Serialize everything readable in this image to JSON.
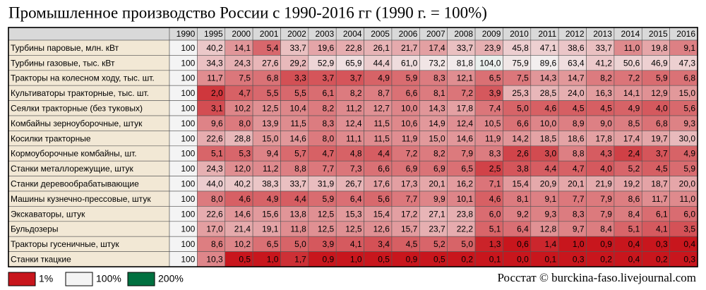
{
  "chart_data": {
    "type": "heatmap",
    "title": "Промышленное производство России с 1990-2016 гг (1990 г. = 100%)",
    "source": "Росстат © burckina-faso.livejournal.com",
    "columns": [
      "1990",
      "1995",
      "2000",
      "2001",
      "2002",
      "2003",
      "2004",
      "2005",
      "2006",
      "2007",
      "2008",
      "2009",
      "2010",
      "2011",
      "2012",
      "2013",
      "2014",
      "2015",
      "2016"
    ],
    "color_scale": [
      {
        "value": 1,
        "label": "1%",
        "color": "#c8161d"
      },
      {
        "value": 100,
        "label": "100%",
        "color": "#f4f4f4"
      },
      {
        "value": 200,
        "label": "200%",
        "color": "#007040"
      }
    ],
    "rows": [
      {
        "label": "Турбины паровые, млн. кВт",
        "values": [
          100,
          40.2,
          14.1,
          5.4,
          33.7,
          19.6,
          22.8,
          26.1,
          21.7,
          17.4,
          33.7,
          23.9,
          45.8,
          47.1,
          38.6,
          33.7,
          11.0,
          19.8,
          9.1
        ],
        "value_labels": [
          "100",
          "40,2",
          "14,1",
          "5,4",
          "33,7",
          "19,6",
          "22,8",
          "26,1",
          "21,7",
          "17,4",
          "33,7",
          "23,9",
          "45,8",
          "47,1",
          "38,6",
          "33,7",
          "11,0",
          "19,8",
          "9,1"
        ]
      },
      {
        "label": "Турбины газовые, тыс. кВт",
        "values": [
          100,
          34.3,
          24.3,
          27.6,
          29.2,
          52.9,
          65.9,
          44.4,
          61.0,
          73.2,
          81.8,
          104.0,
          75.9,
          89.6,
          63.4,
          41.2,
          50.6,
          46.9,
          47.3
        ],
        "value_labels": [
          "100",
          "34,3",
          "24,3",
          "27,6",
          "29,2",
          "52,9",
          "65,9",
          "44,4",
          "61,0",
          "73,2",
          "81,8",
          "104,0",
          "75,9",
          "89,6",
          "63,4",
          "41,2",
          "50,6",
          "46,9",
          "47,3"
        ]
      },
      {
        "label": "Тракторы на колесном ходу, тыс. шт.",
        "values": [
          100,
          11.7,
          7.5,
          6.8,
          3.3,
          3.7,
          3.7,
          4.9,
          5.9,
          8.3,
          12.1,
          6.5,
          7.5,
          14.3,
          14.7,
          8.2,
          7.2,
          5.9,
          6.8
        ],
        "value_labels": [
          "100",
          "11,7",
          "7,5",
          "6,8",
          "3,3",
          "3,7",
          "3,7",
          "4,9",
          "5,9",
          "8,3",
          "12,1",
          "6,5",
          "7,5",
          "14,3",
          "14,7",
          "8,2",
          "7,2",
          "5,9",
          "6,8"
        ]
      },
      {
        "label": "Культиваторы тракторные, тыс. шт.",
        "values": [
          100,
          2.0,
          4.7,
          5.5,
          5.5,
          6.1,
          8.2,
          8.7,
          6.6,
          8.1,
          7.2,
          3.9,
          25.3,
          28.5,
          24.0,
          16.3,
          14.1,
          12.9,
          15.0
        ],
        "value_labels": [
          "100",
          "2,0",
          "4,7",
          "5,5",
          "5,5",
          "6,1",
          "8,2",
          "8,7",
          "6,6",
          "8,1",
          "7,2",
          "3,9",
          "25,3",
          "28,5",
          "24,0",
          "16,3",
          "14,1",
          "12,9",
          "15,0"
        ]
      },
      {
        "label": "Сеялки тракторные (без туковых)",
        "values": [
          100,
          3.1,
          10.2,
          12.5,
          10.4,
          8.2,
          11.2,
          12.7,
          10.0,
          14.3,
          17.8,
          7.4,
          5.0,
          4.6,
          4.5,
          4.5,
          4.9,
          4.0,
          5.6
        ],
        "value_labels": [
          "100",
          "3,1",
          "10,2",
          "12,5",
          "10,4",
          "8,2",
          "11,2",
          "12,7",
          "10,0",
          "14,3",
          "17,8",
          "7,4",
          "5,0",
          "4,6",
          "4,5",
          "4,5",
          "4,9",
          "4,0",
          "5,6"
        ]
      },
      {
        "label": "Комбайны зерноуборочные, штук",
        "values": [
          100,
          9.6,
          8.0,
          13.9,
          11.5,
          8.3,
          12.4,
          11.5,
          10.6,
          14.9,
          12.4,
          10.5,
          6.6,
          10.0,
          8.9,
          9.0,
          8.5,
          6.8,
          9.3
        ],
        "value_labels": [
          "100",
          "9,6",
          "8,0",
          "13,9",
          "11,5",
          "8,3",
          "12,4",
          "11,5",
          "10,6",
          "14,9",
          "12,4",
          "10,5",
          "6,6",
          "10,0",
          "8,9",
          "9,0",
          "8,5",
          "6,8",
          "9,3"
        ]
      },
      {
        "label": "Косилки тракторные",
        "values": [
          100,
          22.6,
          28.8,
          15.0,
          14.6,
          8.0,
          11.1,
          11.5,
          11.9,
          15.0,
          14.6,
          11.9,
          14.2,
          18.5,
          18.6,
          17.8,
          17.4,
          19.7,
          30.0
        ],
        "value_labels": [
          "100",
          "22,6",
          "28,8",
          "15,0",
          "14,6",
          "8,0",
          "11,1",
          "11,5",
          "11,9",
          "15,0",
          "14,6",
          "11,9",
          "14,2",
          "18,5",
          "18,6",
          "17,8",
          "17,4",
          "19,7",
          "30,0"
        ]
      },
      {
        "label": "Кормоуборочные комбайны, шт.",
        "values": [
          100,
          5.1,
          5.3,
          9.4,
          5.7,
          4.7,
          4.8,
          4.4,
          7.2,
          8.2,
          7.9,
          8.3,
          2.6,
          3.0,
          8.8,
          4.3,
          2.4,
          3.7,
          4.9
        ],
        "value_labels": [
          "100",
          "5,1",
          "5,3",
          "9,4",
          "5,7",
          "4,7",
          "4,8",
          "4,4",
          "7,2",
          "8,2",
          "7,9",
          "8,3",
          "2,6",
          "3,0",
          "8,8",
          "4,3",
          "2,4",
          "3,7",
          "4,9"
        ]
      },
      {
        "label": "Станки металлорежущие, штук",
        "values": [
          100,
          24.3,
          12.0,
          11.2,
          8.8,
          7.7,
          7.3,
          6.6,
          6.9,
          6.9,
          6.5,
          2.5,
          3.8,
          4.4,
          4.7,
          4.0,
          5.2,
          4.5,
          5.9
        ],
        "value_labels": [
          "100",
          "24,3",
          "12,0",
          "11,2",
          "8,8",
          "7,7",
          "7,3",
          "6,6",
          "6,9",
          "6,9",
          "6,5",
          "2,5",
          "3,8",
          "4,4",
          "4,7",
          "4,0",
          "5,2",
          "4,5",
          "5,9"
        ]
      },
      {
        "label": "Станки деревообрабатывающие",
        "values": [
          100,
          44.0,
          40.2,
          38.3,
          33.7,
          31.9,
          26.7,
          17.6,
          17.3,
          20.1,
          16.2,
          7.1,
          15.4,
          20.9,
          20.1,
          21.9,
          19.2,
          18.7,
          20.0
        ],
        "value_labels": [
          "100",
          "44,0",
          "40,2",
          "38,3",
          "33,7",
          "31,9",
          "26,7",
          "17,6",
          "17,3",
          "20,1",
          "16,2",
          "7,1",
          "15,4",
          "20,9",
          "20,1",
          "21,9",
          "19,2",
          "18,7",
          "20,0"
        ]
      },
      {
        "label": "Машины кузнечно-прессовые, штук",
        "values": [
          100,
          8.0,
          4.6,
          4.9,
          4.4,
          5.9,
          6.4,
          5.6,
          7.7,
          9.9,
          10.1,
          4.6,
          8.1,
          9.1,
          7.7,
          7.9,
          8.6,
          11.7,
          11.0
        ],
        "value_labels": [
          "100",
          "8,0",
          "4,6",
          "4,9",
          "4,4",
          "5,9",
          "6,4",
          "5,6",
          "7,7",
          "9,9",
          "10,1",
          "4,6",
          "8,1",
          "9,1",
          "7,7",
          "7,9",
          "8,6",
          "11,7",
          "11,0"
        ]
      },
      {
        "label": "Экскаваторы, штук",
        "values": [
          100,
          22.6,
          14.6,
          15.6,
          13.8,
          12.5,
          15.3,
          15.4,
          17.2,
          27.1,
          23.8,
          6.0,
          9.2,
          9.3,
          8.3,
          7.9,
          8.4,
          6.1,
          6.0
        ],
        "value_labels": [
          "100",
          "22,6",
          "14,6",
          "15,6",
          "13,8",
          "12,5",
          "15,3",
          "15,4",
          "17,2",
          "27,1",
          "23,8",
          "6,0",
          "9,2",
          "9,3",
          "8,3",
          "7,9",
          "8,4",
          "6,1",
          "6,0"
        ]
      },
      {
        "label": "Бульдозеры",
        "values": [
          100,
          17.0,
          21.4,
          19.1,
          11.8,
          12.5,
          12.5,
          12.6,
          15.7,
          23.7,
          22.2,
          5.1,
          6.4,
          12.8,
          9.7,
          8.4,
          5.1,
          4.1,
          3.5
        ],
        "value_labels": [
          "100",
          "17,0",
          "21,4",
          "19,1",
          "11,8",
          "12,5",
          "12,5",
          "12,6",
          "15,7",
          "23,7",
          "22,2",
          "5,1",
          "6,4",
          "12,8",
          "9,7",
          "8,4",
          "5,1",
          "4,1",
          "3,5"
        ]
      },
      {
        "label": "Тракторы гусеничные, штук",
        "values": [
          100,
          8.6,
          10.2,
          6.5,
          5.0,
          3.9,
          4.1,
          3.4,
          4.5,
          5.2,
          5.0,
          1.3,
          0.6,
          1.4,
          1.0,
          0.9,
          0.4,
          0.3,
          0.4
        ],
        "value_labels": [
          "100",
          "8,6",
          "10,2",
          "6,5",
          "5,0",
          "3,9",
          "4,1",
          "3,4",
          "4,5",
          "5,2",
          "5,0",
          "1,3",
          "0,6",
          "1,4",
          "1,0",
          "0,9",
          "0,4",
          "0,3",
          "0,4"
        ]
      },
      {
        "label": "Станки ткацкие",
        "values": [
          100,
          10.3,
          0.5,
          1.0,
          1.7,
          0.9,
          1.0,
          0.5,
          0.9,
          0.5,
          0.2,
          0.1,
          0.0,
          0.1,
          0.3,
          0.2,
          0.4,
          0.2,
          0.3
        ],
        "value_labels": [
          "100",
          "10,3",
          "0,5",
          "1,0",
          "1,7",
          "0,9",
          "1,0",
          "0,5",
          "0,9",
          "0,5",
          "0,2",
          "0,1",
          "0,0",
          "0,1",
          "0,3",
          "0,2",
          "0,4",
          "0,2",
          "0,3"
        ]
      }
    ]
  }
}
